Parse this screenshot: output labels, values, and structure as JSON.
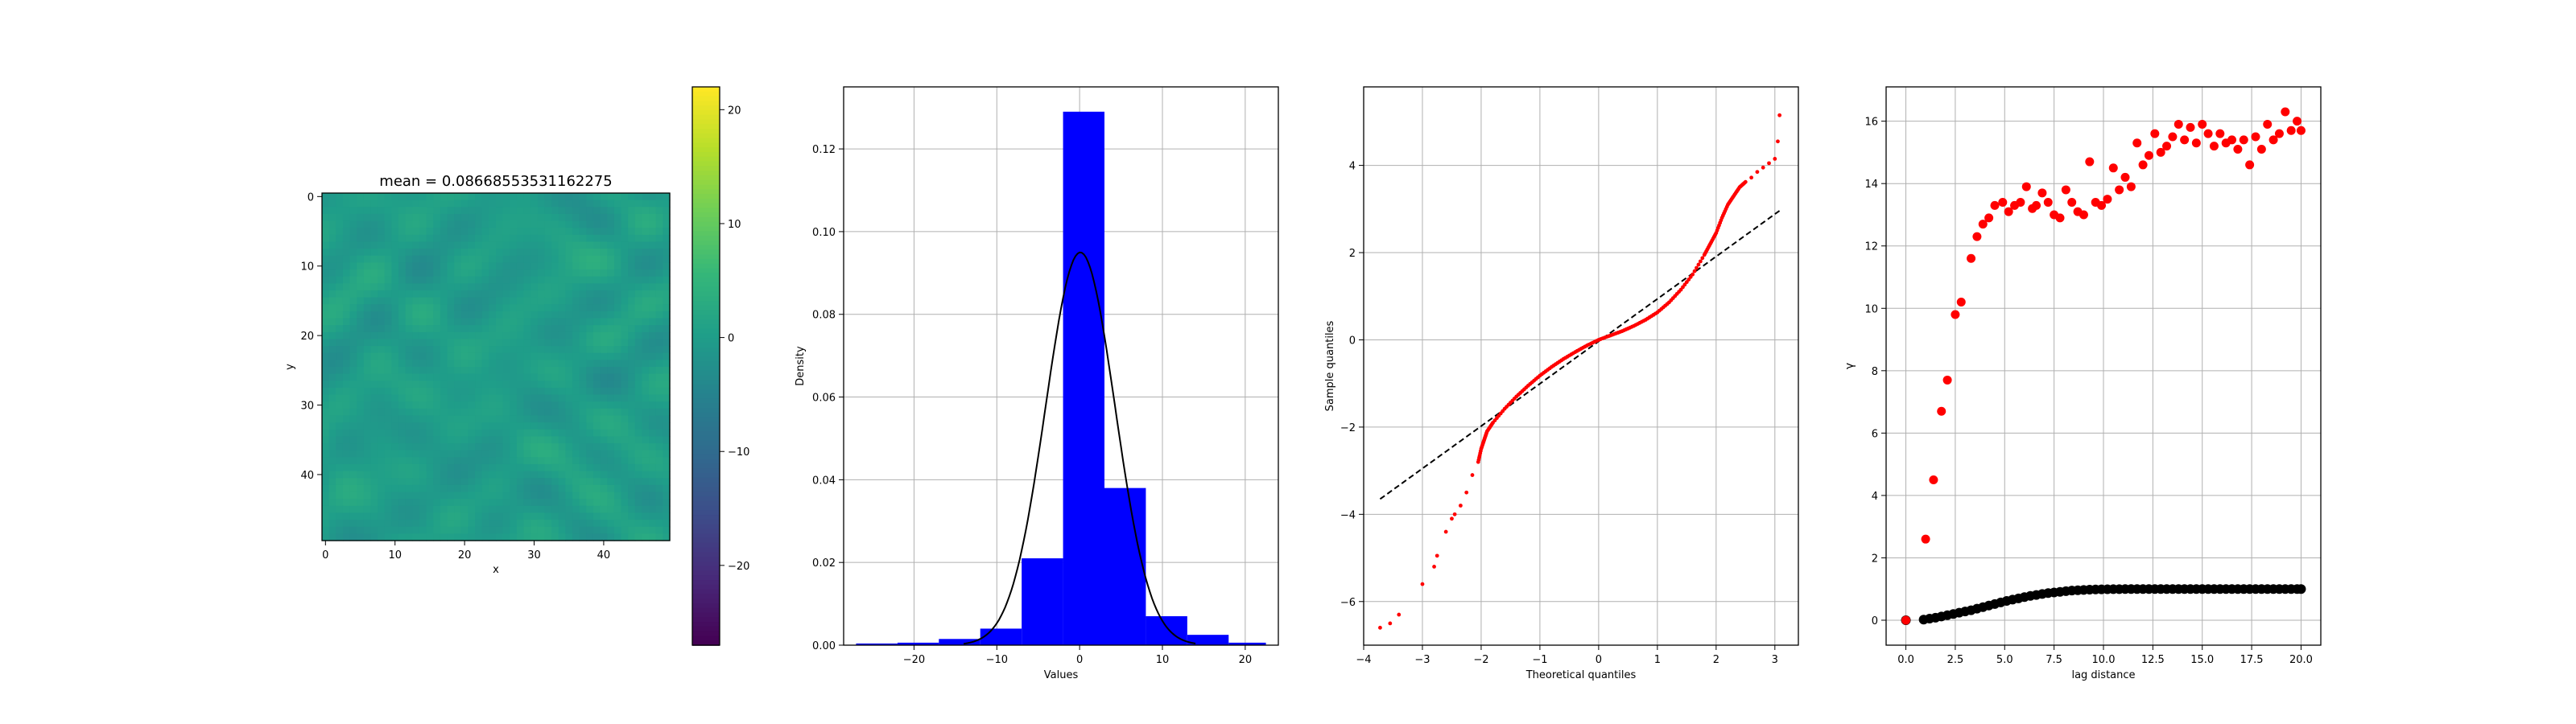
{
  "colors": {
    "histogram_bar": "#0000ff",
    "qq_points": "#ff0000",
    "qq_line": "#000000",
    "variogram_experimental": "#ff0000",
    "variogram_model": "#000000",
    "grid": "#b0b0b0",
    "viridis": [
      "#440154",
      "#482878",
      "#3e4a89",
      "#31688e",
      "#26828e",
      "#1f9e89",
      "#35b779",
      "#6ece58",
      "#b5de2b",
      "#fde725"
    ]
  },
  "chart_data": [
    {
      "type": "heatmap",
      "title": "mean = 0.08668553531162275",
      "xlabel": "x",
      "ylabel": "y",
      "grid_size": [
        50,
        50
      ],
      "xticks": [
        "0",
        "10",
        "20",
        "30",
        "40"
      ],
      "yticks": [
        "0",
        "10",
        "20",
        "30",
        "40"
      ],
      "colorbar": {
        "range": [
          -27,
          22
        ],
        "ticks": [
          20,
          10,
          0,
          -10,
          -20
        ],
        "tick_labels": [
          "20",
          "10",
          "0",
          "−10",
          "−20"
        ]
      },
      "colormap": "viridis",
      "grid": false
    },
    {
      "type": "bar",
      "xlabel": "Values",
      "ylabel": "Density",
      "bin_edges": [
        -27.0,
        -22.0,
        -17.0,
        -12.0,
        -7.0,
        -2.0,
        3.0,
        8.0,
        13.0,
        18.0,
        22.5
      ],
      "values": [
        0.0004,
        0.0006,
        0.0015,
        0.004,
        0.021,
        0.129,
        0.038,
        0.007,
        0.0025,
        0.0006
      ],
      "curve": {
        "type": "normal_pdf",
        "mean": 0.087,
        "std": 4.2
      },
      "xlim": [
        -28.5,
        24.0
      ],
      "ylim": [
        0,
        0.135
      ],
      "xticks": [
        -20,
        -10,
        0,
        10,
        20
      ],
      "xtick_labels": [
        "−20",
        "−10",
        "0",
        "10",
        "20"
      ],
      "yticks": [
        0.0,
        0.02,
        0.04,
        0.06,
        0.08,
        0.1,
        0.12
      ],
      "ytick_labels": [
        "0.00",
        "0.02",
        "0.04",
        "0.06",
        "0.08",
        "0.10",
        "0.12"
      ],
      "grid": true
    },
    {
      "type": "scatter",
      "xlabel": "Theoretical quantiles",
      "ylabel": "Sample quantiles",
      "series": [
        {
          "points": [
            [
              -3.72,
              -6.6
            ],
            [
              -3.55,
              -6.5
            ],
            [
              -3.4,
              -6.3
            ],
            [
              -3.0,
              -5.6
            ],
            [
              -2.8,
              -5.2
            ],
            [
              -2.75,
              -4.95
            ],
            [
              -2.6,
              -4.4
            ],
            [
              -2.5,
              -4.1
            ],
            [
              -2.45,
              -4.0
            ],
            [
              -2.35,
              -3.8
            ],
            [
              -2.25,
              -3.5
            ],
            [
              -2.15,
              -3.1
            ],
            [
              -2.05,
              -2.8
            ],
            [
              -2.0,
              -2.5
            ],
            [
              -1.95,
              -2.3
            ],
            [
              -1.9,
              -2.1
            ],
            [
              -1.8,
              -1.9
            ],
            [
              -1.6,
              -1.58
            ],
            [
              -1.4,
              -1.3
            ],
            [
              -1.2,
              -1.05
            ],
            [
              -1.0,
              -0.82
            ],
            [
              -0.8,
              -0.62
            ],
            [
              -0.6,
              -0.44
            ],
            [
              -0.4,
              -0.28
            ],
            [
              -0.2,
              -0.13
            ],
            [
              0.0,
              0.0
            ],
            [
              0.2,
              0.1
            ],
            [
              0.4,
              0.2
            ],
            [
              0.6,
              0.32
            ],
            [
              0.8,
              0.46
            ],
            [
              1.0,
              0.63
            ],
            [
              1.2,
              0.86
            ],
            [
              1.4,
              1.15
            ],
            [
              1.6,
              1.5
            ],
            [
              1.8,
              1.95
            ],
            [
              1.9,
              2.2
            ],
            [
              2.0,
              2.45
            ],
            [
              2.1,
              2.8
            ],
            [
              2.2,
              3.1
            ],
            [
              2.3,
              3.3
            ],
            [
              2.4,
              3.5
            ],
            [
              2.5,
              3.62
            ],
            [
              2.6,
              3.72
            ],
            [
              2.7,
              3.85
            ],
            [
              2.8,
              3.95
            ],
            [
              2.9,
              4.05
            ],
            [
              3.0,
              4.15
            ],
            [
              3.05,
              4.55
            ],
            [
              3.08,
              5.15
            ]
          ]
        }
      ],
      "line": {
        "x": [
          -3.72,
          3.12
        ],
        "y": [
          -3.65,
          3.0
        ]
      },
      "xlim": [
        -4.0,
        3.4
      ],
      "ylim": [
        -7.0,
        5.8
      ],
      "xticks": [
        -4,
        -3,
        -2,
        -1,
        0,
        1,
        2,
        3
      ],
      "xtick_labels": [
        "−4",
        "−3",
        "−2",
        "−1",
        "0",
        "1",
        "2",
        "3"
      ],
      "yticks": [
        -6,
        -4,
        -2,
        0,
        2,
        4
      ],
      "ytick_labels": [
        "−6",
        "−4",
        "−2",
        "0",
        "2",
        "4"
      ],
      "grid": true
    },
    {
      "type": "scatter",
      "xlabel": "lag distance",
      "ylabel": "γ",
      "series": [
        {
          "x": [
            0.0,
            1.0,
            1.4,
            1.8,
            2.1,
            2.5,
            2.8,
            3.3,
            3.6,
            3.9,
            4.2,
            4.5,
            4.9,
            5.2,
            5.5,
            5.8,
            6.1,
            6.4,
            6.6,
            6.9,
            7.2,
            7.5,
            7.8,
            8.1,
            8.4,
            8.7,
            9.0,
            9.3,
            9.6,
            9.9,
            10.2,
            10.5,
            10.8,
            11.1,
            11.4,
            11.7,
            12.0,
            12.3,
            12.6,
            12.9,
            13.2,
            13.5,
            13.8,
            14.1,
            14.4,
            14.7,
            15.0,
            15.3,
            15.6,
            15.9,
            16.2,
            16.5,
            16.8,
            17.1,
            17.4,
            17.7,
            18.0,
            18.3,
            18.6,
            18.9,
            19.2,
            19.5,
            19.8,
            20.0
          ],
          "y": [
            0.0,
            2.6,
            4.5,
            6.7,
            7.7,
            9.8,
            10.2,
            11.6,
            12.3,
            12.7,
            12.9,
            13.3,
            13.4,
            13.1,
            13.3,
            13.4,
            13.9,
            13.2,
            13.3,
            13.7,
            13.4,
            13.0,
            12.9,
            13.8,
            13.4,
            13.1,
            13.0,
            14.7,
            13.4,
            13.3,
            13.5,
            14.5,
            13.8,
            14.2,
            13.9,
            15.3,
            14.6,
            14.9,
            15.6,
            15.0,
            15.2,
            15.5,
            15.9,
            15.4,
            15.8,
            15.3,
            15.9,
            15.6,
            15.2,
            15.6,
            15.3,
            15.4,
            15.1,
            15.4,
            14.6,
            15.5,
            15.1,
            15.9,
            15.4,
            15.6,
            16.3,
            15.7,
            16.0,
            15.7
          ]
        },
        {
          "x": [
            0.0,
            0.9,
            1.2,
            1.5,
            1.8,
            2.1,
            2.4,
            2.7,
            3.0,
            3.3,
            3.6,
            3.9,
            4.2,
            4.5,
            4.8,
            5.1,
            5.4,
            5.7,
            6.0,
            6.3,
            6.6,
            6.9,
            7.2,
            7.5,
            7.8,
            8.1,
            8.4,
            8.7,
            9.0,
            9.3,
            9.6,
            9.9,
            10.2,
            10.5,
            10.8,
            11.1,
            11.4,
            11.7,
            12.0,
            12.3,
            12.6,
            12.9,
            13.2,
            13.5,
            13.8,
            14.1,
            14.4,
            14.7,
            15.0,
            15.3,
            15.6,
            15.9,
            16.2,
            16.5,
            16.8,
            17.1,
            17.4,
            17.7,
            18.0,
            18.3,
            18.6,
            18.9,
            19.2,
            19.5,
            19.8,
            20.0
          ],
          "y": [
            0.0,
            0.02,
            0.05,
            0.08,
            0.12,
            0.16,
            0.2,
            0.24,
            0.28,
            0.32,
            0.37,
            0.42,
            0.47,
            0.52,
            0.57,
            0.62,
            0.66,
            0.7,
            0.74,
            0.78,
            0.81,
            0.84,
            0.87,
            0.89,
            0.91,
            0.93,
            0.95,
            0.96,
            0.97,
            0.98,
            0.985,
            0.99,
            0.993,
            0.995,
            0.997,
            0.998,
            0.999,
            1.0,
            1.0,
            1.0,
            1.0,
            1.0,
            1.0,
            1.0,
            1.0,
            1.0,
            1.0,
            1.0,
            1.0,
            1.0,
            1.0,
            1.0,
            1.0,
            1.0,
            1.0,
            1.0,
            1.0,
            1.0,
            1.0,
            1.0,
            1.0,
            1.0,
            1.0,
            1.0,
            1.0,
            1.0
          ]
        }
      ],
      "xlim": [
        -1.0,
        21.0
      ],
      "ylim": [
        -0.8,
        17.1
      ],
      "xticks": [
        0.0,
        2.5,
        5.0,
        7.5,
        10.0,
        12.5,
        15.0,
        17.5,
        20.0
      ],
      "xtick_labels": [
        "0.0",
        "2.5",
        "5.0",
        "7.5",
        "10.0",
        "12.5",
        "15.0",
        "17.5",
        "20.0"
      ],
      "yticks": [
        0,
        2,
        4,
        6,
        8,
        10,
        12,
        14,
        16
      ],
      "ytick_labels": [
        "0",
        "2",
        "4",
        "6",
        "8",
        "10",
        "12",
        "14",
        "16"
      ],
      "grid": true
    }
  ]
}
